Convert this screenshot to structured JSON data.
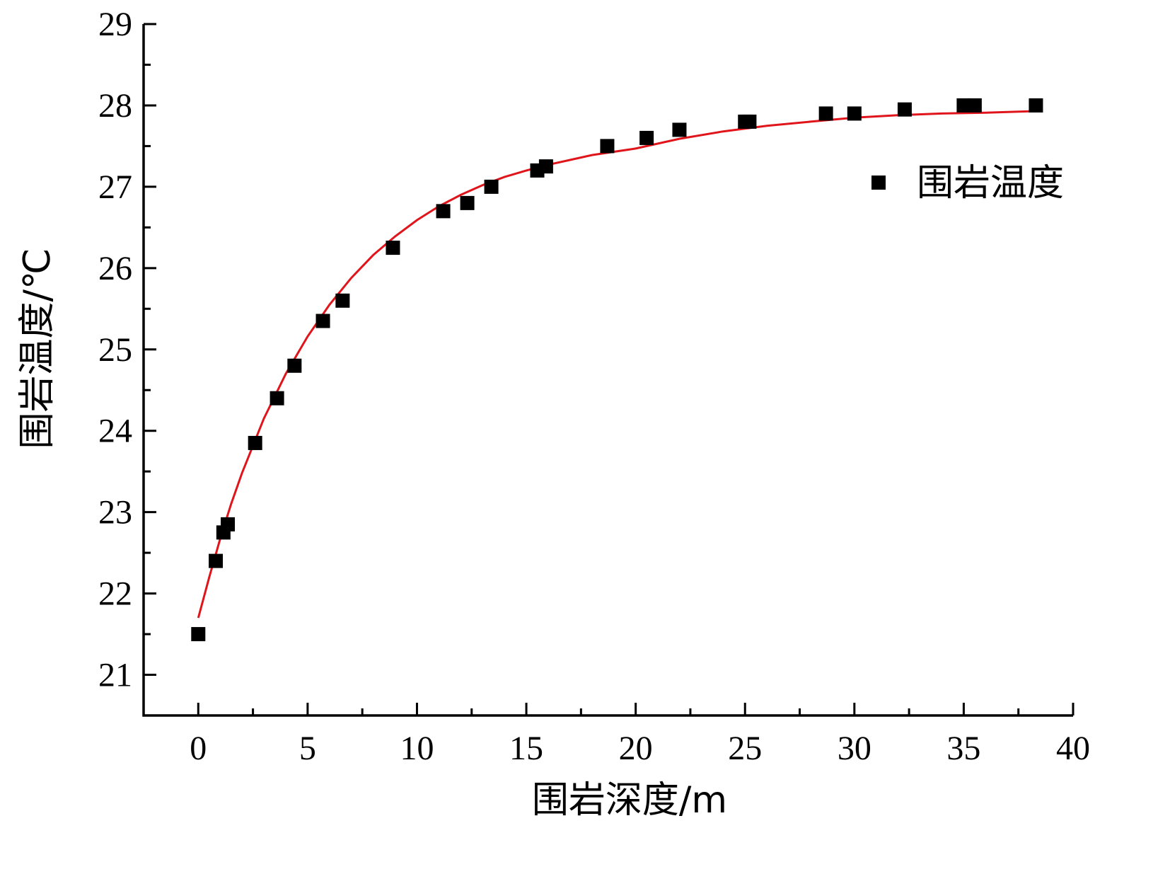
{
  "chart_data": {
    "type": "scatter",
    "xlabel": "围岩深度/m",
    "ylabel": "围岩温度/℃",
    "xlim": [
      -2.5,
      40
    ],
    "ylim": [
      20.5,
      29
    ],
    "x_ticks": [
      0,
      5,
      10,
      15,
      20,
      25,
      30,
      35,
      40
    ],
    "y_ticks": [
      21,
      22,
      23,
      24,
      25,
      26,
      27,
      28,
      29
    ],
    "legend_position": "top-right",
    "series": [
      {
        "name": "围岩温度",
        "kind": "scatter",
        "marker": "square",
        "color": "#000000",
        "x": [
          0.0,
          0.8,
          1.15,
          1.35,
          2.6,
          3.6,
          4.4,
          5.7,
          6.6,
          8.9,
          11.2,
          12.3,
          13.4,
          15.5,
          15.9,
          18.7,
          20.5,
          22.0,
          25.0,
          25.2,
          28.7,
          30.0,
          32.3,
          35.0,
          35.5,
          38.3
        ],
        "y": [
          21.5,
          22.4,
          22.75,
          22.85,
          23.85,
          24.4,
          24.8,
          25.35,
          25.6,
          26.25,
          26.7,
          26.8,
          27.0,
          27.2,
          27.25,
          27.5,
          27.6,
          27.7,
          27.8,
          27.8,
          27.9,
          27.9,
          27.95,
          28.0,
          28.0,
          28.0
        ]
      },
      {
        "kind": "line",
        "color": "#e0151b",
        "x": [
          0.0,
          0.5,
          1.0,
          1.5,
          2.0,
          3.0,
          4.0,
          5.0,
          6.0,
          7.0,
          8.0,
          9.0,
          10.0,
          11.0,
          12.0,
          13.0,
          14.0,
          15.0,
          16.0,
          17.0,
          18.0,
          19.0,
          20.0,
          22.0,
          24.0,
          26.0,
          28.0,
          30.0,
          32.0,
          34.0,
          36.0,
          38.3
        ],
        "y": [
          21.7,
          22.2,
          22.67,
          23.1,
          23.48,
          24.15,
          24.7,
          25.16,
          25.55,
          25.88,
          26.16,
          26.39,
          26.59,
          26.76,
          26.9,
          27.02,
          27.12,
          27.2,
          27.27,
          27.33,
          27.39,
          27.43,
          27.47,
          27.59,
          27.68,
          27.75,
          27.8,
          27.85,
          27.88,
          27.9,
          27.91,
          27.93
        ]
      }
    ]
  }
}
